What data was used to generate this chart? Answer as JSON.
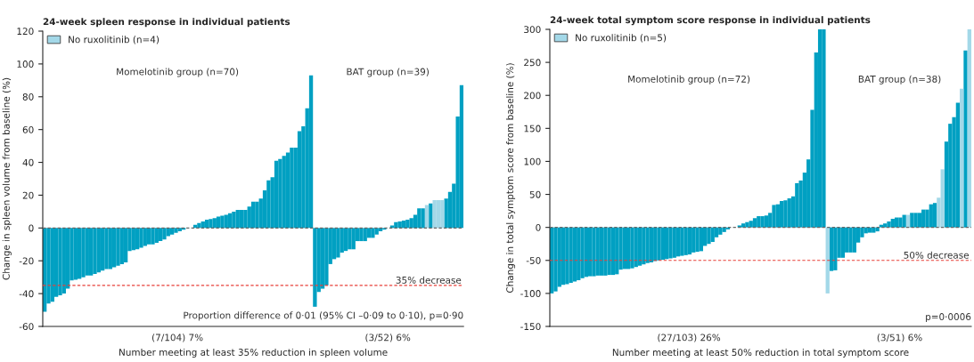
{
  "chart_data": [
    {
      "type": "bar",
      "title": "24-week spleen response in individual patients",
      "ylabel": "Change in spleen volume from baseline (%)",
      "xlabel": "Number meeting at least 35% reduction in spleen volume",
      "categories": [
        null,
        null,
        null,
        null,
        null,
        null,
        null,
        null,
        null,
        null,
        null,
        null,
        null,
        null,
        null,
        null,
        null,
        null,
        null,
        null,
        null,
        null,
        null,
        null,
        null,
        null,
        null,
        null,
        null,
        null,
        null,
        null,
        null,
        null,
        null,
        null,
        null,
        null,
        null,
        null,
        null,
        null,
        null,
        null,
        null,
        null,
        null,
        null,
        null,
        null,
        null,
        null,
        null,
        null,
        null,
        null,
        null,
        null,
        null,
        null,
        null,
        null,
        null,
        null,
        null,
        null,
        null,
        null,
        null,
        null,
        null,
        null,
        null,
        null,
        null,
        null,
        null,
        null,
        null,
        null,
        null,
        null,
        null,
        null,
        null,
        null,
        null,
        null,
        null,
        null,
        null,
        null,
        null,
        null,
        null,
        null,
        null,
        null,
        null,
        null,
        null,
        null,
        null,
        null,
        null,
        null,
        null,
        null,
        null
      ],
      "series": [
        {
          "color": "#00a0c2",
          "values": [
            -51,
            -46,
            -45,
            -42,
            -41,
            -40,
            -37,
            -32,
            -31.5,
            -31,
            -30,
            -29,
            -29,
            -28,
            -27,
            -26,
            -25,
            -25,
            -24,
            -23,
            -22,
            -21,
            -14,
            -13.5,
            -13,
            -12,
            -11,
            -10,
            -10,
            -9,
            -8,
            -7,
            -5,
            -4,
            -3,
            -2,
            -1,
            0,
            0,
            2,
            3,
            4,
            5,
            5.5,
            6,
            7,
            7.5,
            8,
            9,
            10,
            11,
            11,
            11,
            13,
            16,
            16,
            18,
            23,
            29,
            31,
            41,
            42,
            44,
            46,
            49,
            49,
            59,
            62,
            73,
            93,
            -48,
            -39,
            -37,
            -35,
            -22,
            -19,
            -18,
            -15,
            -14,
            -13,
            -13,
            -8,
            -8,
            -8,
            -6,
            -6,
            -4,
            -2,
            -1,
            0,
            1.5,
            3.5,
            4,
            4.5,
            5,
            6,
            8,
            12,
            12,
            null,
            15,
            null,
            null,
            null,
            18,
            22,
            27,
            68,
            87
          ]
        },
        {
          "name": "No ruxolitinib (n=4)",
          "color": "#a3d8e8",
          "values": [
            null,
            null,
            null,
            null,
            null,
            null,
            null,
            null,
            null,
            null,
            null,
            null,
            null,
            null,
            null,
            null,
            null,
            null,
            null,
            null,
            null,
            null,
            null,
            null,
            null,
            null,
            null,
            null,
            null,
            null,
            null,
            null,
            null,
            null,
            null,
            null,
            null,
            null,
            null,
            null,
            null,
            null,
            null,
            null,
            null,
            null,
            null,
            null,
            null,
            null,
            null,
            null,
            null,
            null,
            null,
            null,
            null,
            null,
            null,
            null,
            null,
            null,
            null,
            null,
            null,
            null,
            null,
            null,
            null,
            null,
            null,
            null,
            null,
            null,
            null,
            null,
            null,
            null,
            null,
            null,
            null,
            null,
            null,
            null,
            null,
            null,
            null,
            null,
            null,
            null,
            null,
            null,
            null,
            null,
            null,
            null,
            null,
            null,
            null,
            14,
            null,
            17,
            17,
            17,
            null,
            null,
            null,
            null,
            null
          ]
        }
      ],
      "ylim": [
        -60,
        120
      ],
      "yticks": [
        -60,
        -40,
        -20,
        0,
        20,
        40,
        60,
        80,
        100,
        120
      ],
      "tick_labels": "y",
      "grid": false,
      "legend": "top left",
      "ref_lines": [
        {
          "axis": "y",
          "value": 0,
          "color": "#666666",
          "line_style": "dashed"
        },
        {
          "axis": "y",
          "value": -35,
          "color": "#e8403a",
          "line_style": "dashed",
          "label": "35% decrease"
        }
      ],
      "annotations": [
        "Momelotinib group (n=70)",
        "BAT group (n=39)",
        "Proportion difference of 0·01 (95% CI –0·09 to 0·10), p=0·90",
        "(7/104) 7%",
        "(3/52) 6%"
      ]
    },
    {
      "type": "bar",
      "title": "24-week total symptom score response in individual patients",
      "ylabel": "Change in total symptom score from baseline (%)",
      "xlabel": "Number meeting at least 50% reduction in total symptom score",
      "categories": [
        null,
        null,
        null,
        null,
        null,
        null,
        null,
        null,
        null,
        null,
        null,
        null,
        null,
        null,
        null,
        null,
        null,
        null,
        null,
        null,
        null,
        null,
        null,
        null,
        null,
        null,
        null,
        null,
        null,
        null,
        null,
        null,
        null,
        null,
        null,
        null,
        null,
        null,
        null,
        null,
        null,
        null,
        null,
        null,
        null,
        null,
        null,
        null,
        null,
        null,
        null,
        null,
        null,
        null,
        null,
        null,
        null,
        null,
        null,
        null,
        null,
        null,
        null,
        null,
        null,
        null,
        null,
        null,
        null,
        null,
        null,
        null,
        null,
        null,
        null,
        null,
        null,
        null,
        null,
        null,
        null,
        null,
        null,
        null,
        null,
        null,
        null,
        null,
        null,
        null,
        null,
        null,
        null,
        null,
        null,
        null,
        null,
        null,
        null,
        null,
        null,
        null,
        null,
        null,
        null,
        null,
        null,
        null,
        null,
        null
      ],
      "series": [
        {
          "color": "#00a0c2",
          "values": [
            -100,
            -97,
            -90,
            -87,
            -86,
            -84,
            -82,
            -80,
            -77,
            -75,
            -74,
            -74,
            -73,
            -73,
            -73,
            -72,
            -72,
            -71,
            -64,
            -63,
            -63,
            -62,
            -60,
            -58,
            -56,
            -54,
            -53,
            -51,
            -50,
            -49,
            -48,
            -47,
            -46,
            -44,
            -43,
            -42,
            -41,
            -38,
            -37,
            -36,
            -28,
            -25,
            -22,
            -15,
            -11,
            -7,
            -3,
            0,
            0,
            3,
            6,
            8,
            10,
            14,
            17,
            17,
            18,
            22,
            34,
            35,
            40,
            41,
            44,
            47,
            67,
            71,
            83,
            103,
            178,
            265,
            300,
            300,
            null,
            -66,
            -65,
            -46,
            -46,
            -38,
            -38,
            -38,
            -23,
            -15,
            -9,
            -8,
            -8,
            -6,
            4,
            6,
            9,
            13,
            15,
            15,
            19,
            null,
            22,
            22,
            22,
            27,
            27,
            35,
            37,
            null,
            null,
            130,
            157,
            167,
            189,
            null,
            268,
            null
          ]
        },
        {
          "name": "No ruxolitinib (n=5)",
          "color": "#a3d8e8",
          "values": [
            null,
            null,
            null,
            null,
            null,
            null,
            null,
            null,
            null,
            null,
            null,
            null,
            null,
            null,
            null,
            null,
            null,
            null,
            null,
            null,
            null,
            null,
            null,
            null,
            null,
            null,
            null,
            null,
            null,
            null,
            null,
            null,
            null,
            null,
            null,
            null,
            null,
            null,
            null,
            null,
            null,
            null,
            null,
            null,
            null,
            null,
            null,
            null,
            null,
            null,
            null,
            null,
            null,
            null,
            null,
            null,
            null,
            null,
            null,
            null,
            null,
            null,
            null,
            null,
            null,
            null,
            null,
            null,
            null,
            null,
            null,
            null,
            -100,
            null,
            null,
            null,
            null,
            null,
            null,
            null,
            null,
            null,
            null,
            null,
            null,
            null,
            null,
            null,
            null,
            null,
            null,
            null,
            null,
            19,
            null,
            null,
            null,
            null,
            null,
            null,
            null,
            45,
            88,
            null,
            null,
            null,
            null,
            210,
            null,
            300
          ]
        }
      ],
      "ylim": [
        -150,
        300
      ],
      "yticks": [
        -150,
        -100,
        -50,
        0,
        50,
        100,
        150,
        200,
        250,
        300
      ],
      "tick_labels": "y",
      "grid": false,
      "legend": "top left",
      "ref_lines": [
        {
          "axis": "y",
          "value": 0,
          "color": "#666666",
          "line_style": "dashed"
        },
        {
          "axis": "y",
          "value": -50,
          "color": "#e8403a",
          "line_style": "dashed",
          "label": "50% decrease"
        }
      ],
      "annotations": [
        "Momelotinib group (n=72)",
        "BAT group (n=38)",
        "p=0·0006",
        "(27/103) 26%",
        "(3/51) 6%"
      ]
    }
  ]
}
